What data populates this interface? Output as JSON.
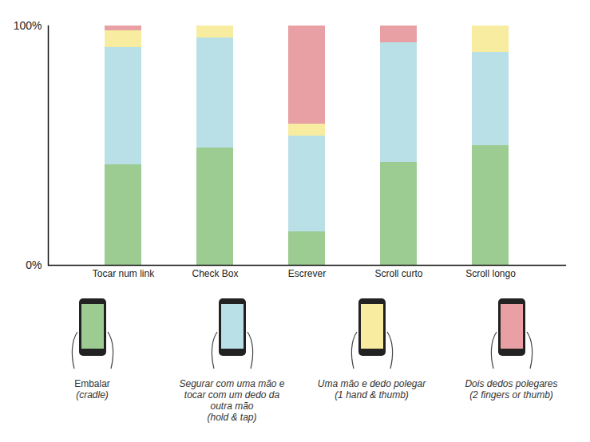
{
  "chart_data": {
    "type": "bar",
    "stacked": true,
    "categories": [
      "Tocar num link",
      "Check Box",
      "Escrever",
      "Scroll curto",
      "Scroll longo"
    ],
    "series": [
      {
        "name": "Embalar (cradle)",
        "color": "#9ccc92",
        "values": [
          42,
          49,
          14,
          43,
          50
        ]
      },
      {
        "name": "Segurar com uma mão e tocar com um dedo da outra mão (hold & tap)",
        "color": "#b8e0e6",
        "values": [
          49,
          46,
          40,
          50,
          39
        ]
      },
      {
        "name": "Uma mão e dedo polegar (1 hand & thumb)",
        "color": "#f7eca0",
        "values": [
          7,
          5,
          5,
          0,
          11
        ]
      },
      {
        "name": "Dois dedos polegares (2 fingers or thumb)",
        "color": "#e8a0a4",
        "values": [
          2,
          0,
          41,
          7,
          0
        ]
      }
    ],
    "ylim": [
      0,
      100
    ],
    "yticks": [
      {
        "value": 0,
        "label": "0%"
      },
      {
        "value": 100,
        "label": "100%"
      }
    ],
    "legend": "bottom",
    "data_labels": false,
    "grid": false
  }
}
